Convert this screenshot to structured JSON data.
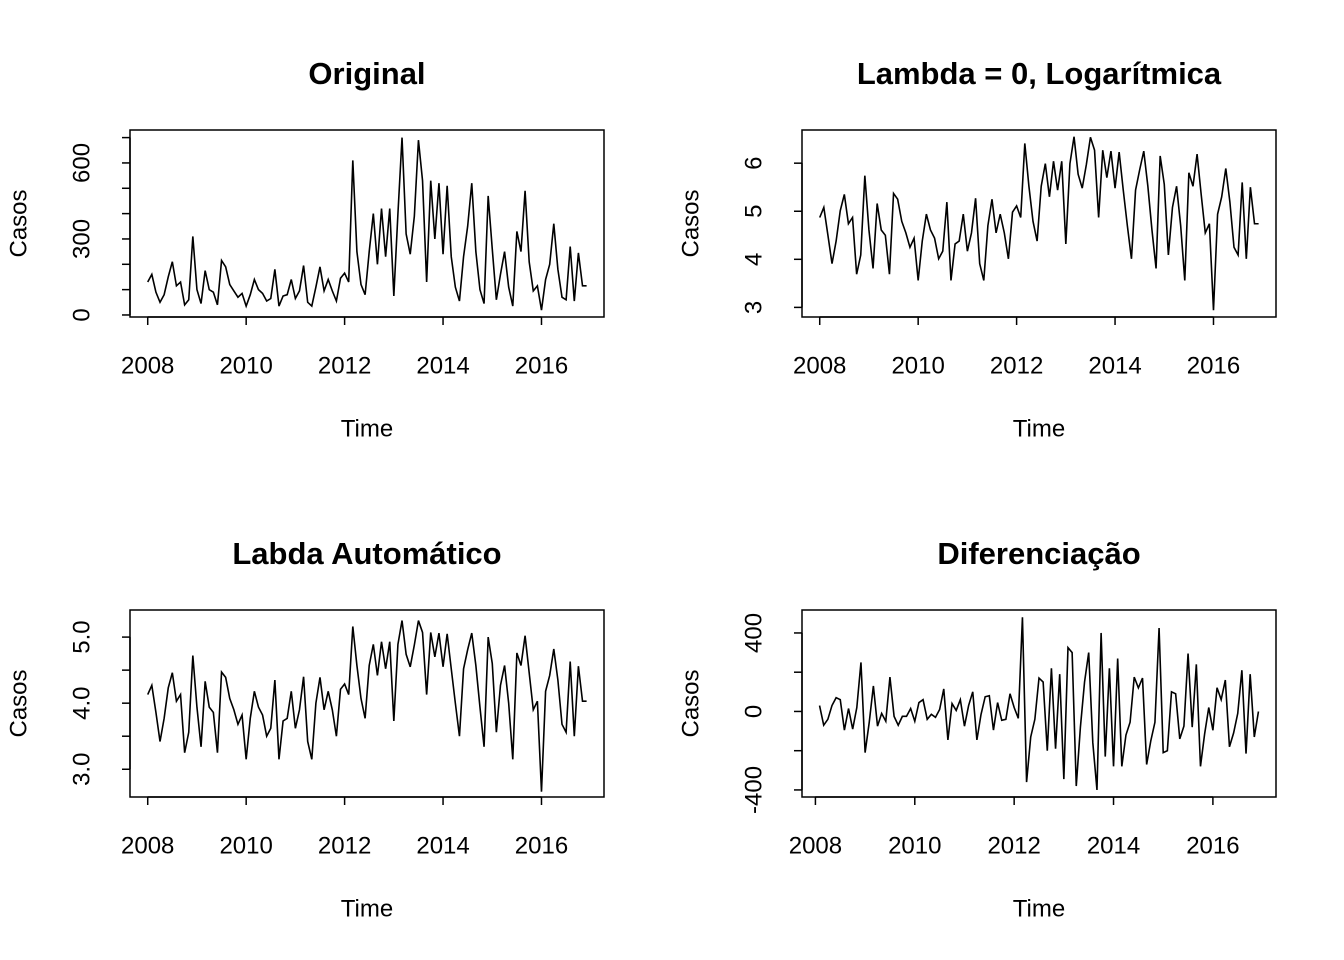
{
  "chart_data": [
    {
      "type": "line",
      "title": "Original",
      "xlabel": "Time",
      "ylabel": "Casos",
      "color": "#000000",
      "x": [
        2008,
        2008.0833,
        2008.1667,
        2008.25,
        2008.3333,
        2008.4167,
        2008.5,
        2008.5833,
        2008.6667,
        2008.75,
        2008.8333,
        2008.9167,
        2009,
        2009.0833,
        2009.1667,
        2009.25,
        2009.3333,
        2009.4167,
        2009.5,
        2009.5833,
        2009.6667,
        2009.75,
        2009.8333,
        2009.9167,
        2010,
        2010.0833,
        2010.1667,
        2010.25,
        2010.3333,
        2010.4167,
        2010.5,
        2010.5833,
        2010.6667,
        2010.75,
        2010.8333,
        2010.9167,
        2011,
        2011.0833,
        2011.1667,
        2011.25,
        2011.3333,
        2011.4167,
        2011.5,
        2011.5833,
        2011.6667,
        2011.75,
        2011.8333,
        2011.9167,
        2012,
        2012.0833,
        2012.1667,
        2012.25,
        2012.3333,
        2012.4167,
        2012.5,
        2012.5833,
        2012.6667,
        2012.75,
        2012.8333,
        2012.9167,
        2013,
        2013.0833,
        2013.1667,
        2013.25,
        2013.3333,
        2013.4167,
        2013.5,
        2013.5833,
        2013.6667,
        2013.75,
        2013.8333,
        2013.9167,
        2014,
        2014.0833,
        2014.1667,
        2014.25,
        2014.3333,
        2014.4167,
        2014.5,
        2014.5833,
        2014.6667,
        2014.75,
        2014.8333,
        2014.9167,
        2015,
        2015.0833,
        2015.1667,
        2015.25,
        2015.3333,
        2015.4167,
        2015.5,
        2015.5833,
        2015.6667,
        2015.75,
        2015.8333,
        2015.9167,
        2016,
        2016.0833,
        2016.1667,
        2016.25,
        2016.3333,
        2016.4167,
        2016.5,
        2016.5833,
        2016.6667,
        2016.75,
        2016.8333,
        2016.9167
      ],
      "values": [
        130,
        160,
        90,
        50,
        80,
        150,
        210,
        115,
        130,
        40,
        60,
        310,
        100,
        45,
        175,
        100,
        90,
        40,
        215,
        190,
        120,
        95,
        70,
        85,
        35,
        80,
        140,
        100,
        85,
        55,
        65,
        180,
        35,
        75,
        80,
        140,
        65,
        95,
        195,
        50,
        35,
        110,
        190,
        95,
        140,
        95,
        55,
        145,
        165,
        130,
        610,
        250,
        120,
        80,
        250,
        400,
        200,
        420,
        230,
        420,
        75,
        400,
        700,
        320,
        240,
        390,
        690,
        530,
        130,
        530,
        300,
        520,
        240,
        510,
        230,
        110,
        55,
        230,
        350,
        520,
        250,
        100,
        45,
        470,
        260,
        60,
        160,
        250,
        110,
        35,
        330,
        250,
        490,
        210,
        95,
        115,
        19,
        140,
        200,
        360,
        180,
        70,
        60,
        270,
        55,
        245,
        115,
        115
      ],
      "xlim": [
        2007.64,
        2017.27
      ],
      "xticks": [
        2008,
        2010,
        2012,
        2014,
        2016
      ],
      "ylim": [
        -8,
        730
      ],
      "yticks": [
        0,
        300,
        600
      ],
      "yminorticks": [
        100,
        200,
        400,
        500,
        700
      ]
    },
    {
      "type": "line",
      "title": "Lambda = 0, Logarítmica",
      "xlabel": "Time",
      "ylabel": "Casos",
      "color": "#000000",
      "x": [
        2008,
        2008.0833,
        2008.1667,
        2008.25,
        2008.3333,
        2008.4167,
        2008.5,
        2008.5833,
        2008.6667,
        2008.75,
        2008.8333,
        2008.9167,
        2009,
        2009.0833,
        2009.1667,
        2009.25,
        2009.3333,
        2009.4167,
        2009.5,
        2009.5833,
        2009.6667,
        2009.75,
        2009.8333,
        2009.9167,
        2010,
        2010.0833,
        2010.1667,
        2010.25,
        2010.3333,
        2010.4167,
        2010.5,
        2010.5833,
        2010.6667,
        2010.75,
        2010.8333,
        2010.9167,
        2011,
        2011.0833,
        2011.1667,
        2011.25,
        2011.3333,
        2011.4167,
        2011.5,
        2011.5833,
        2011.6667,
        2011.75,
        2011.8333,
        2011.9167,
        2012,
        2012.0833,
        2012.1667,
        2012.25,
        2012.3333,
        2012.4167,
        2012.5,
        2012.5833,
        2012.6667,
        2012.75,
        2012.8333,
        2012.9167,
        2013,
        2013.0833,
        2013.1667,
        2013.25,
        2013.3333,
        2013.4167,
        2013.5,
        2013.5833,
        2013.6667,
        2013.75,
        2013.8333,
        2013.9167,
        2014,
        2014.0833,
        2014.1667,
        2014.25,
        2014.3333,
        2014.4167,
        2014.5,
        2014.5833,
        2014.6667,
        2014.75,
        2014.8333,
        2014.9167,
        2015,
        2015.0833,
        2015.1667,
        2015.25,
        2015.3333,
        2015.4167,
        2015.5,
        2015.5833,
        2015.6667,
        2015.75,
        2015.8333,
        2015.9167,
        2016,
        2016.0833,
        2016.1667,
        2016.25,
        2016.3333,
        2016.4167,
        2016.5,
        2016.5833,
        2016.6667,
        2016.75,
        2016.8333,
        2016.9167
      ],
      "values": [
        4.87,
        5.08,
        4.5,
        3.91,
        4.38,
        5.01,
        5.35,
        4.74,
        4.87,
        3.69,
        4.09,
        5.74,
        4.61,
        3.81,
        5.16,
        4.61,
        4.5,
        3.69,
        5.37,
        5.25,
        4.79,
        4.55,
        4.25,
        4.44,
        3.56,
        4.38,
        4.94,
        4.61,
        4.44,
        4.01,
        4.17,
        5.19,
        3.56,
        4.32,
        4.38,
        4.94,
        4.17,
        4.55,
        5.27,
        3.91,
        3.56,
        4.7,
        5.25,
        4.55,
        4.94,
        4.55,
        4.01,
        4.98,
        5.11,
        4.87,
        6.41,
        5.52,
        4.79,
        4.38,
        5.52,
        5.99,
        5.3,
        6.04,
        5.44,
        6.04,
        4.32,
        5.99,
        6.55,
        5.77,
        5.48,
        5.97,
        6.54,
        6.27,
        4.87,
        6.27,
        5.7,
        6.25,
        5.48,
        6.23,
        5.44,
        4.7,
        4.01,
        5.44,
        5.86,
        6.25,
        5.52,
        4.61,
        3.81,
        6.15,
        5.56,
        4.09,
        5.08,
        5.52,
        4.7,
        3.56,
        5.8,
        5.52,
        6.19,
        5.35,
        4.55,
        4.74,
        2.94,
        4.94,
        5.3,
        5.89,
        5.19,
        4.25,
        4.09,
        5.6,
        4.01,
        5.5,
        4.74,
        4.74
      ],
      "xlim": [
        2007.64,
        2017.27
      ],
      "xticks": [
        2008,
        2010,
        2012,
        2014,
        2016
      ],
      "ylim": [
        2.8,
        6.69
      ],
      "yticks": [
        3,
        4,
        5,
        6
      ],
      "yminorticks": []
    },
    {
      "type": "line",
      "title": "Labda Automático",
      "xlabel": "Time",
      "ylabel": "Casos",
      "color": "#000000",
      "x": [
        2008,
        2008.0833,
        2008.1667,
        2008.25,
        2008.3333,
        2008.4167,
        2008.5,
        2008.5833,
        2008.6667,
        2008.75,
        2008.8333,
        2008.9167,
        2009,
        2009.0833,
        2009.1667,
        2009.25,
        2009.3333,
        2009.4167,
        2009.5,
        2009.5833,
        2009.6667,
        2009.75,
        2009.8333,
        2009.9167,
        2010,
        2010.0833,
        2010.1667,
        2010.25,
        2010.3333,
        2010.4167,
        2010.5,
        2010.5833,
        2010.6667,
        2010.75,
        2010.8333,
        2010.9167,
        2011,
        2011.0833,
        2011.1667,
        2011.25,
        2011.3333,
        2011.4167,
        2011.5,
        2011.5833,
        2011.6667,
        2011.75,
        2011.8333,
        2011.9167,
        2012,
        2012.0833,
        2012.1667,
        2012.25,
        2012.3333,
        2012.4167,
        2012.5,
        2012.5833,
        2012.6667,
        2012.75,
        2012.8333,
        2012.9167,
        2013,
        2013.0833,
        2013.1667,
        2013.25,
        2013.3333,
        2013.4167,
        2013.5,
        2013.5833,
        2013.6667,
        2013.75,
        2013.8333,
        2013.9167,
        2014,
        2014.0833,
        2014.1667,
        2014.25,
        2014.3333,
        2014.4167,
        2014.5,
        2014.5833,
        2014.6667,
        2014.75,
        2014.8333,
        2014.9167,
        2015,
        2015.0833,
        2015.1667,
        2015.25,
        2015.3333,
        2015.4167,
        2015.5,
        2015.5833,
        2015.6667,
        2015.75,
        2015.8333,
        2015.9167,
        2016,
        2016.0833,
        2016.1667,
        2016.25,
        2016.3333,
        2016.4167,
        2016.5,
        2016.5833,
        2016.6667,
        2016.75,
        2016.8333,
        2016.9167
      ],
      "values": [
        4.13,
        4.27,
        3.86,
        3.42,
        3.77,
        4.23,
        4.46,
        4.03,
        4.13,
        3.25,
        3.56,
        4.72,
        3.94,
        3.34,
        4.33,
        3.94,
        3.86,
        3.25,
        4.47,
        4.39,
        4.07,
        3.9,
        3.68,
        3.82,
        3.15,
        3.77,
        4.18,
        3.94,
        3.82,
        3.5,
        3.62,
        4.35,
        3.15,
        3.73,
        3.77,
        4.18,
        3.62,
        3.9,
        4.4,
        3.42,
        3.15,
        4.0,
        4.39,
        3.9,
        4.18,
        3.9,
        3.5,
        4.21,
        4.29,
        4.13,
        5.16,
        4.57,
        4.07,
        3.77,
        4.57,
        4.89,
        4.42,
        4.93,
        4.52,
        4.93,
        3.73,
        4.89,
        5.25,
        4.74,
        4.55,
        4.88,
        5.25,
        5.07,
        4.13,
        5.07,
        4.7,
        5.06,
        4.55,
        5.05,
        4.52,
        4.0,
        3.5,
        4.52,
        4.81,
        5.06,
        4.57,
        3.94,
        3.34,
        5.0,
        4.6,
        3.56,
        4.27,
        4.57,
        4.0,
        3.15,
        4.76,
        4.57,
        5.02,
        4.46,
        3.9,
        4.03,
        2.66,
        4.18,
        4.42,
        4.82,
        4.35,
        3.68,
        3.56,
        4.63,
        3.5,
        4.56,
        4.03,
        4.03
      ],
      "xlim": [
        2007.64,
        2017.27
      ],
      "xticks": [
        2008,
        2010,
        2012,
        2014,
        2016
      ],
      "ylim": [
        2.58,
        5.41
      ],
      "yticks": [
        {
          "value": 3,
          "label": "3.0"
        },
        {
          "value": 4,
          "label": "4.0"
        },
        {
          "value": 5,
          "label": "5.0"
        }
      ],
      "yminorticks": [
        3.5,
        4.5
      ]
    },
    {
      "type": "line",
      "title": "Diferenciação",
      "xlabel": "Time",
      "ylabel": "Casos",
      "color": "#000000",
      "x": [
        2008.0833,
        2008.1667,
        2008.25,
        2008.3333,
        2008.4167,
        2008.5,
        2008.5833,
        2008.6667,
        2008.75,
        2008.8333,
        2008.9167,
        2009,
        2009.0833,
        2009.1667,
        2009.25,
        2009.3333,
        2009.4167,
        2009.5,
        2009.5833,
        2009.6667,
        2009.75,
        2009.8333,
        2009.9167,
        2010,
        2010.0833,
        2010.1667,
        2010.25,
        2010.3333,
        2010.4167,
        2010.5,
        2010.5833,
        2010.6667,
        2010.75,
        2010.8333,
        2010.9167,
        2011,
        2011.0833,
        2011.1667,
        2011.25,
        2011.3333,
        2011.4167,
        2011.5,
        2011.5833,
        2011.6667,
        2011.75,
        2011.8333,
        2011.9167,
        2012,
        2012.0833,
        2012.1667,
        2012.25,
        2012.3333,
        2012.4167,
        2012.5,
        2012.5833,
        2012.6667,
        2012.75,
        2012.8333,
        2012.9167,
        2013,
        2013.0833,
        2013.1667,
        2013.25,
        2013.3333,
        2013.4167,
        2013.5,
        2013.5833,
        2013.6667,
        2013.75,
        2013.8333,
        2013.9167,
        2014,
        2014.0833,
        2014.1667,
        2014.25,
        2014.3333,
        2014.4167,
        2014.5,
        2014.5833,
        2014.6667,
        2014.75,
        2014.8333,
        2014.9167,
        2015,
        2015.0833,
        2015.1667,
        2015.25,
        2015.3333,
        2015.4167,
        2015.5,
        2015.5833,
        2015.6667,
        2015.75,
        2015.8333,
        2015.9167,
        2016,
        2016.0833,
        2016.1667,
        2016.25,
        2016.3333,
        2016.4167,
        2016.5,
        2016.5833,
        2016.6667,
        2016.75,
        2016.8333,
        2016.9167
      ],
      "values": [
        30,
        -70,
        -40,
        30,
        70,
        60,
        -95,
        15,
        -90,
        20,
        250,
        -210,
        -55,
        130,
        -75,
        -10,
        -50,
        175,
        -25,
        -70,
        -25,
        -25,
        15,
        -50,
        45,
        60,
        -40,
        -15,
        -30,
        10,
        115,
        -145,
        40,
        5,
        60,
        -75,
        30,
        100,
        -145,
        -15,
        75,
        80,
        -95,
        45,
        -45,
        -40,
        90,
        20,
        -35,
        480,
        -360,
        -130,
        -40,
        170,
        150,
        -200,
        220,
        -190,
        190,
        -345,
        325,
        300,
        -380,
        -80,
        150,
        300,
        -160,
        -400,
        400,
        -230,
        220,
        -280,
        270,
        -280,
        -120,
        -55,
        175,
        120,
        170,
        -270,
        -150,
        -55,
        425,
        -210,
        -200,
        100,
        90,
        -140,
        -75,
        295,
        -80,
        240,
        -280,
        -115,
        20,
        -96,
        121,
        60,
        160,
        -180,
        -110,
        -10,
        210,
        -215,
        190,
        -130,
        0
      ],
      "xlim": [
        2007.73,
        2017.27
      ],
      "xticks": [
        2008,
        2010,
        2012,
        2014,
        2016
      ],
      "ylim": [
        -436,
        517
      ],
      "yticks": [
        -400,
        0,
        400
      ],
      "yminorticks": [
        -200,
        200
      ]
    }
  ]
}
